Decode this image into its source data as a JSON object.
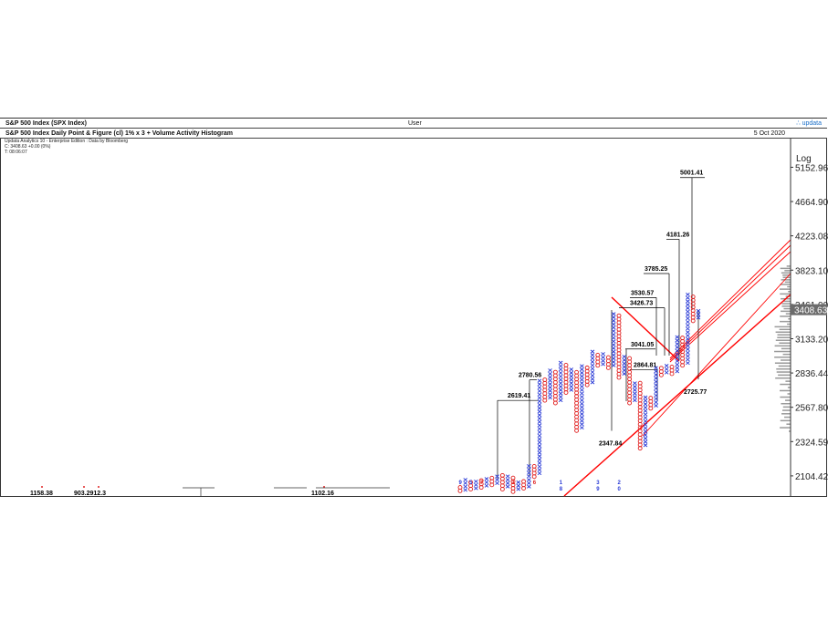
{
  "header": {
    "security": "S&P 500 Index (SPX Index)",
    "user": "User",
    "brand": "∴ updata",
    "chart_title": "S&P 500 Index Daily Point & Figure (cl) 1% x 3 + Volume Activity Histogram",
    "date": "5 Oct 2020"
  },
  "info": {
    "line1": "Updata Analytics 10 - Enterprise Edition : Data by Bloomberg",
    "line2": "C: 3408.63  +0.00 (0%)",
    "line3": "T: 08:06:07"
  },
  "colors": {
    "x": "#2a3bd6",
    "o": "#e02020",
    "trend": "#ff0000",
    "grid": "#777777",
    "target": "#000000"
  },
  "chart_data": {
    "type": "point-and-figure",
    "title": "S&P 500 Index Daily Point & Figure (cl) 1% x 3 + Volume Activity Histogram",
    "scale": "Log",
    "y_tick_labels": [
      "5152.96",
      "4664.90",
      "4223.08",
      "3823.10",
      "3461.00",
      "3133.20",
      "2836.44",
      "2567.80",
      "2324.59",
      "2104.42"
    ],
    "y_ticks": [
      5152.96,
      4664.9,
      4223.08,
      3823.1,
      3461.0,
      3133.2,
      2836.44,
      2567.8,
      2324.59,
      2104.42
    ],
    "last_price": "3408.63",
    "last_price_value": 3408.63,
    "ylim": [
      1985,
      5600
    ],
    "price_targets": [
      {
        "label": "5001.41",
        "value": 5001.41
      },
      {
        "label": "4181.26",
        "value": 4181.26
      },
      {
        "label": "3785.25",
        "value": 3785.25
      },
      {
        "label": "3530.57",
        "value": 3530.57
      },
      {
        "label": "3426.73",
        "value": 3426.73
      },
      {
        "label": "3041.05",
        "value": 3041.05
      },
      {
        "label": "2864.81",
        "value": 2864.81
      },
      {
        "label": "2780.56",
        "value": 2780.56
      },
      {
        "label": "2619.41",
        "value": 2619.41
      },
      {
        "label": "2725.77",
        "value": 2725.77
      },
      {
        "label": "2347.84",
        "value": 2347.84
      }
    ],
    "bottom_labels": [
      "1158.38",
      "903.2912.3",
      "1102.16"
    ],
    "month_markers": [
      {
        "col": 0,
        "text": "9",
        "color": "#2a3bd6"
      },
      {
        "col": 2,
        "text": "5",
        "color": "#2a3bd6"
      },
      {
        "col": 4,
        "text": "7",
        "color": "#e02020"
      },
      {
        "col": 10,
        "text": "1",
        "color": "#e02020"
      },
      {
        "col": 14,
        "text": "6",
        "color": "#e02020"
      },
      {
        "col": 19,
        "text": "1",
        "color": "#2a3bd6"
      },
      {
        "col": 19,
        "text": "8",
        "color": "#2a3bd6"
      },
      {
        "col": 26,
        "text": "3",
        "color": "#2a3bd6"
      },
      {
        "col": 26,
        "text": "9",
        "color": "#2a3bd6"
      },
      {
        "col": 30,
        "text": "2",
        "color": "#2a3bd6"
      },
      {
        "col": 30,
        "text": "0",
        "color": "#2a3bd6"
      }
    ],
    "columns": [
      {
        "type": "O",
        "high": 2050,
        "low": 2015
      },
      {
        "type": "X",
        "high": 2085,
        "low": 2020
      },
      {
        "type": "O",
        "high": 2075,
        "low": 2025
      },
      {
        "type": "X",
        "high": 2090,
        "low": 2030
      },
      {
        "type": "O",
        "high": 2080,
        "low": 2035
      },
      {
        "type": "X",
        "high": 2100,
        "low": 2045
      },
      {
        "type": "O",
        "high": 2095,
        "low": 2050
      },
      {
        "type": "X",
        "high": 2115,
        "low": 2060
      },
      {
        "type": "O",
        "high": 2110,
        "low": 2025
      },
      {
        "type": "X",
        "high": 2105,
        "low": 2040
      },
      {
        "type": "O",
        "high": 2095,
        "low": 2010
      },
      {
        "type": "X",
        "high": 2085,
        "low": 2025
      },
      {
        "type": "O",
        "high": 2080,
        "low": 2030
      },
      {
        "type": "X",
        "high": 2180,
        "low": 2040
      },
      {
        "type": "O",
        "high": 2180,
        "low": 2100
      },
      {
        "type": "X",
        "high": 2800,
        "low": 2120
      },
      {
        "type": "O",
        "high": 2790,
        "low": 2620
      },
      {
        "type": "X",
        "high": 2880,
        "low": 2640
      },
      {
        "type": "O",
        "high": 2870,
        "low": 2600
      },
      {
        "type": "X",
        "high": 2940,
        "low": 2620
      },
      {
        "type": "O",
        "high": 2930,
        "low": 2680
      },
      {
        "type": "X",
        "high": 2880,
        "low": 2700
      },
      {
        "type": "O",
        "high": 2870,
        "low": 2400
      },
      {
        "type": "X",
        "high": 2900,
        "low": 2420
      },
      {
        "type": "O",
        "high": 2890,
        "low": 2740
      },
      {
        "type": "X",
        "high": 3020,
        "low": 2760
      },
      {
        "type": "O",
        "high": 3010,
        "low": 2900
      },
      {
        "type": "X",
        "high": 3000,
        "low": 2910
      },
      {
        "type": "O",
        "high": 2990,
        "low": 2880
      },
      {
        "type": "X",
        "high": 3390,
        "low": 2900
      },
      {
        "type": "O",
        "high": 3380,
        "low": 2800
      },
      {
        "type": "X",
        "high": 2990,
        "low": 2830
      },
      {
        "type": "O",
        "high": 2980,
        "low": 2600
      },
      {
        "type": "X",
        "high": 2780,
        "low": 2620
      },
      {
        "type": "O",
        "high": 2770,
        "low": 2280
      },
      {
        "type": "X",
        "high": 2650,
        "low": 2300
      },
      {
        "type": "O",
        "high": 2640,
        "low": 2560
      },
      {
        "type": "X",
        "high": 2900,
        "low": 2580
      },
      {
        "type": "O",
        "high": 2890,
        "low": 2820
      },
      {
        "type": "X",
        "high": 2920,
        "low": 2840
      },
      {
        "type": "O",
        "high": 2910,
        "low": 2830
      },
      {
        "type": "X",
        "high": 3160,
        "low": 2850
      },
      {
        "type": "O",
        "high": 3150,
        "low": 2900
      },
      {
        "type": "X",
        "high": 3580,
        "low": 2920
      },
      {
        "type": "O",
        "high": 3560,
        "low": 3300
      },
      {
        "type": "X",
        "high": 3420,
        "low": 3330
      }
    ]
  }
}
